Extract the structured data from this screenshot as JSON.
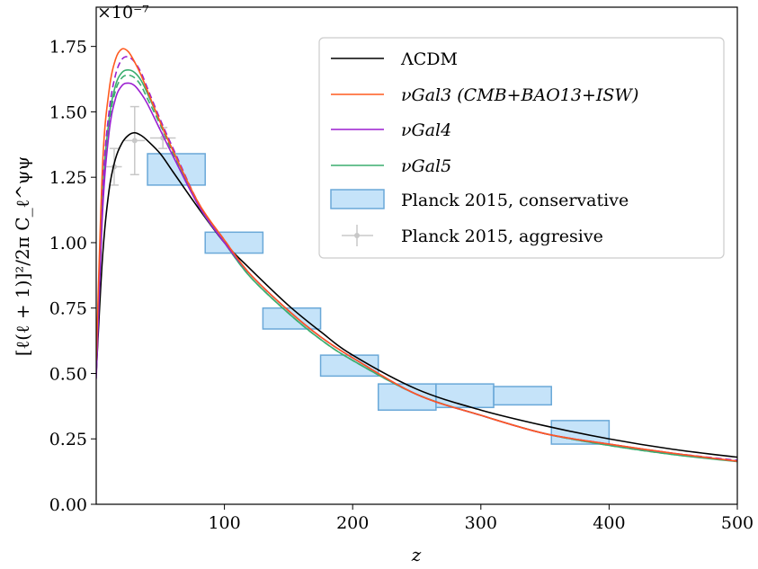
{
  "chart_data": {
    "type": "line",
    "offset_text": "×10⁻⁷",
    "xlabel": "z",
    "ylabel": "[ℓ(ℓ + 1)]²/2π C_ℓ^ψψ",
    "xlim": [
      0,
      500
    ],
    "ylim": [
      0.0,
      1.9
    ],
    "xticks": [
      100,
      200,
      300,
      400,
      500
    ],
    "yticks": [
      0.0,
      0.25,
      0.5,
      0.75,
      1.0,
      1.25,
      1.5,
      1.75
    ],
    "xtick_labels": [
      "100",
      "200",
      "300",
      "400",
      "500"
    ],
    "ytick_labels": [
      "0.00",
      "0.25",
      "0.50",
      "0.75",
      "1.00",
      "1.25",
      "1.50",
      "1.75"
    ],
    "grid": false,
    "legend_position": "top-right",
    "series": [
      {
        "name": "ΛCDM",
        "color": "#000000",
        "style": "solid",
        "points": [
          [
            0,
            0.5
          ],
          [
            5,
            0.95
          ],
          [
            10,
            1.2
          ],
          [
            15,
            1.32
          ],
          [
            20,
            1.38
          ],
          [
            25,
            1.41
          ],
          [
            30,
            1.42
          ],
          [
            35,
            1.41
          ],
          [
            40,
            1.39
          ],
          [
            50,
            1.34
          ],
          [
            60,
            1.27
          ],
          [
            80,
            1.13
          ],
          [
            100,
            1.0
          ],
          [
            120,
            0.9
          ],
          [
            150,
            0.76
          ],
          [
            175,
            0.66
          ],
          [
            200,
            0.57
          ],
          [
            250,
            0.44
          ],
          [
            300,
            0.36
          ],
          [
            350,
            0.3
          ],
          [
            400,
            0.25
          ],
          [
            450,
            0.21
          ],
          [
            500,
            0.18
          ]
        ]
      },
      {
        "name": "νGal3 (CMB+BAO13+ISW)",
        "color": "#ff5a1f",
        "style": "solid",
        "points": [
          [
            0,
            0.55
          ],
          [
            5,
            1.3
          ],
          [
            10,
            1.58
          ],
          [
            15,
            1.7
          ],
          [
            20,
            1.74
          ],
          [
            25,
            1.73
          ],
          [
            30,
            1.69
          ],
          [
            35,
            1.64
          ],
          [
            40,
            1.58
          ],
          [
            50,
            1.46
          ],
          [
            60,
            1.35
          ],
          [
            80,
            1.15
          ],
          [
            100,
            1.01
          ],
          [
            120,
            0.88
          ],
          [
            150,
            0.74
          ],
          [
            175,
            0.64
          ],
          [
            200,
            0.56
          ],
          [
            250,
            0.42
          ],
          [
            300,
            0.34
          ],
          [
            350,
            0.27
          ],
          [
            400,
            0.23
          ],
          [
            450,
            0.195
          ],
          [
            500,
            0.165
          ]
        ]
      },
      {
        "name": "",
        "color": "#9b1fd1",
        "style": "dashed",
        "points": [
          [
            0,
            0.5
          ],
          [
            5,
            1.2
          ],
          [
            10,
            1.5
          ],
          [
            15,
            1.64
          ],
          [
            20,
            1.7
          ],
          [
            25,
            1.71
          ],
          [
            30,
            1.69
          ],
          [
            35,
            1.65
          ],
          [
            40,
            1.59
          ],
          [
            50,
            1.47
          ],
          [
            60,
            1.36
          ],
          [
            80,
            1.15
          ],
          [
            100,
            1.01
          ],
          [
            120,
            0.88
          ],
          [
            150,
            0.74
          ],
          [
            175,
            0.64
          ],
          [
            200,
            0.56
          ],
          [
            250,
            0.42
          ],
          [
            300,
            0.34
          ],
          [
            350,
            0.27
          ],
          [
            400,
            0.23
          ],
          [
            450,
            0.195
          ],
          [
            500,
            0.168
          ]
        ]
      },
      {
        "name": "νGal4",
        "color": "#9b1fd1",
        "style": "solid",
        "points": [
          [
            0,
            0.48
          ],
          [
            5,
            1.12
          ],
          [
            10,
            1.42
          ],
          [
            15,
            1.55
          ],
          [
            20,
            1.6
          ],
          [
            25,
            1.61
          ],
          [
            30,
            1.6
          ],
          [
            35,
            1.57
          ],
          [
            40,
            1.53
          ],
          [
            50,
            1.43
          ],
          [
            60,
            1.33
          ],
          [
            80,
            1.14
          ],
          [
            100,
            1.0
          ],
          [
            120,
            0.88
          ],
          [
            150,
            0.74
          ],
          [
            175,
            0.64
          ],
          [
            200,
            0.56
          ],
          [
            250,
            0.42
          ],
          [
            300,
            0.34
          ],
          [
            350,
            0.27
          ],
          [
            400,
            0.23
          ],
          [
            450,
            0.195
          ],
          [
            500,
            0.165
          ]
        ]
      },
      {
        "name": "",
        "color": "#3aad6e",
        "style": "dashed",
        "points": [
          [
            0,
            0.5
          ],
          [
            5,
            1.15
          ],
          [
            10,
            1.45
          ],
          [
            15,
            1.58
          ],
          [
            20,
            1.63
          ],
          [
            25,
            1.64
          ],
          [
            30,
            1.63
          ],
          [
            35,
            1.6
          ],
          [
            40,
            1.55
          ],
          [
            50,
            1.45
          ],
          [
            60,
            1.34
          ],
          [
            80,
            1.14
          ],
          [
            100,
            1.0
          ],
          [
            120,
            0.87
          ],
          [
            150,
            0.73
          ],
          [
            175,
            0.63
          ],
          [
            200,
            0.55
          ],
          [
            250,
            0.42
          ],
          [
            300,
            0.34
          ],
          [
            350,
            0.27
          ],
          [
            400,
            0.225
          ],
          [
            450,
            0.19
          ],
          [
            500,
            0.165
          ]
        ]
      },
      {
        "name": "νGal5",
        "color": "#3aad6e",
        "style": "solid",
        "points": [
          [
            0,
            0.5
          ],
          [
            5,
            1.18
          ],
          [
            10,
            1.47
          ],
          [
            15,
            1.6
          ],
          [
            20,
            1.65
          ],
          [
            25,
            1.66
          ],
          [
            30,
            1.65
          ],
          [
            35,
            1.62
          ],
          [
            40,
            1.57
          ],
          [
            50,
            1.46
          ],
          [
            60,
            1.35
          ],
          [
            80,
            1.14
          ],
          [
            100,
            1.0
          ],
          [
            120,
            0.87
          ],
          [
            150,
            0.73
          ],
          [
            175,
            0.63
          ],
          [
            200,
            0.55
          ],
          [
            250,
            0.42
          ],
          [
            300,
            0.34
          ],
          [
            350,
            0.27
          ],
          [
            400,
            0.225
          ],
          [
            450,
            0.19
          ],
          [
            500,
            0.163
          ]
        ]
      }
    ],
    "boxes_series": {
      "name": "Planck 2015, conservative",
      "fill": "#9fd0f5",
      "stroke": "#6aa8d8",
      "boxes": [
        {
          "x0": 40,
          "x1": 85,
          "y0": 1.22,
          "y1": 1.34
        },
        {
          "x0": 85,
          "x1": 130,
          "y0": 0.96,
          "y1": 1.04
        },
        {
          "x0": 130,
          "x1": 175,
          "y0": 0.67,
          "y1": 0.75
        },
        {
          "x0": 175,
          "x1": 220,
          "y0": 0.49,
          "y1": 0.57
        },
        {
          "x0": 220,
          "x1": 265,
          "y0": 0.36,
          "y1": 0.46
        },
        {
          "x0": 265,
          "x1": 310,
          "y0": 0.37,
          "y1": 0.46
        },
        {
          "x0": 310,
          "x1": 355,
          "y0": 0.38,
          "y1": 0.45
        },
        {
          "x0": 355,
          "x1": 400,
          "y0": 0.23,
          "y1": 0.32
        }
      ]
    },
    "errorbar_series": {
      "name": "Planck 2015, aggresive",
      "color": "#c8c8c8",
      "points": [
        {
          "x": 14,
          "y": 1.29,
          "xerr": 6,
          "yerr": 0.07
        },
        {
          "x": 30,
          "y": 1.39,
          "xerr": 8,
          "yerr": 0.13
        },
        {
          "x": 52,
          "y": 1.4,
          "xerr": 10,
          "yerr": 0.04
        }
      ]
    }
  }
}
